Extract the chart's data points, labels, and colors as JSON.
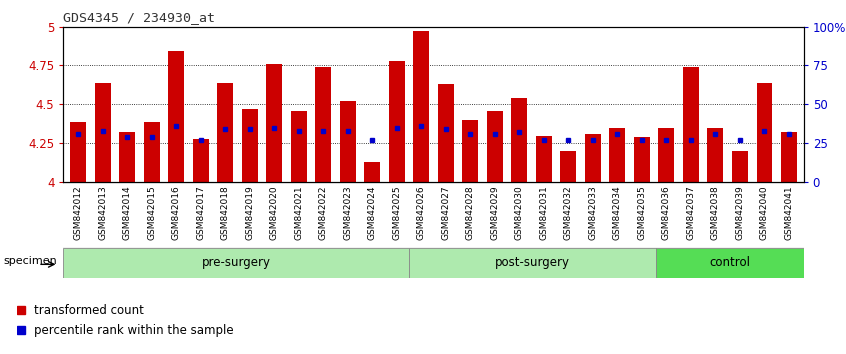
{
  "title": "GDS4345 / 234930_at",
  "samples": [
    "GSM842012",
    "GSM842013",
    "GSM842014",
    "GSM842015",
    "GSM842016",
    "GSM842017",
    "GSM842018",
    "GSM842019",
    "GSM842020",
    "GSM842021",
    "GSM842022",
    "GSM842023",
    "GSM842024",
    "GSM842025",
    "GSM842026",
    "GSM842027",
    "GSM842028",
    "GSM842029",
    "GSM842030",
    "GSM842031",
    "GSM842032",
    "GSM842033",
    "GSM842034",
    "GSM842035",
    "GSM842036",
    "GSM842037",
    "GSM842038",
    "GSM842039",
    "GSM842040",
    "GSM842041"
  ],
  "red_values": [
    4.39,
    4.64,
    4.32,
    4.39,
    4.84,
    4.28,
    4.64,
    4.47,
    4.76,
    4.46,
    4.74,
    4.52,
    4.13,
    4.78,
    4.97,
    4.63,
    4.4,
    4.46,
    4.54,
    4.3,
    4.2,
    4.31,
    4.35,
    4.29,
    4.35,
    4.74,
    4.35,
    4.2,
    4.64,
    4.32
  ],
  "blue_values": [
    4.31,
    4.33,
    4.29,
    4.29,
    4.36,
    4.27,
    4.34,
    4.34,
    4.35,
    4.33,
    4.33,
    4.33,
    4.27,
    4.35,
    4.36,
    4.34,
    4.31,
    4.31,
    4.32,
    4.27,
    4.27,
    4.27,
    4.31,
    4.27,
    4.27,
    4.27,
    4.31,
    4.27,
    4.33,
    4.31
  ],
  "groups": [
    {
      "label": "pre-surgery",
      "start": 0,
      "end": 14
    },
    {
      "label": "post-surgery",
      "start": 14,
      "end": 24
    },
    {
      "label": "control",
      "start": 24,
      "end": 30
    }
  ],
  "group_colors": [
    "#aeeaae",
    "#aeeaae",
    "#55dd55"
  ],
  "ymin": 4.0,
  "ymax": 5.0,
  "yticks": [
    4.0,
    4.25,
    4.5,
    4.75,
    5.0
  ],
  "ytick_labels": [
    "4",
    "4.25",
    "4.5",
    "4.75",
    "5"
  ],
  "y2ticks_pct": [
    0,
    25,
    50,
    75,
    100
  ],
  "y2labels": [
    "0",
    "25",
    "50",
    "75",
    "100%"
  ],
  "bar_color": "#CC0000",
  "blue_color": "#0000CC",
  "yticklabel_color": "#CC0000",
  "y2ticklabel_color": "#0000CC",
  "grid_color": "#000000",
  "tickbg_color": "#cccccc",
  "groupband_border": "#888888"
}
